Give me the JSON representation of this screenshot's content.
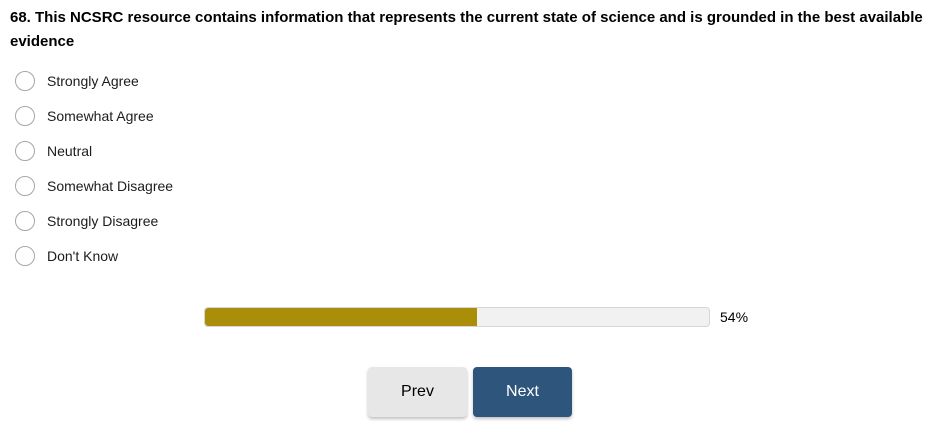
{
  "question": {
    "title": "68. This NCSRC resource contains information that represents the current state of science and is grounded in the best available evidence"
  },
  "options": [
    "Strongly Agree",
    "Somewhat Agree",
    "Neutral",
    "Somewhat Disagree",
    "Strongly Disagree",
    "Don't Know"
  ],
  "progress": {
    "percent": 54,
    "label": "54%",
    "fill_color": "#aa8d09",
    "track_color": "#f1f1f1",
    "track_border_color": "#d6d6d6"
  },
  "nav": {
    "prev_label": "Prev",
    "next_label": "Next",
    "prev_bg": "#e7e7e7",
    "next_bg": "#2e567c",
    "next_text_color": "#ffffff"
  }
}
